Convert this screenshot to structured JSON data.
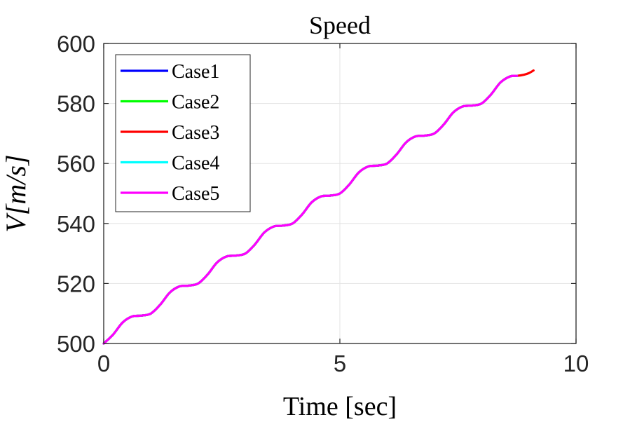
{
  "chart_data": {
    "type": "line",
    "title": "Speed",
    "xlabel": "Time [sec]",
    "ylabel": "V[m/s]",
    "xlim": [
      0,
      10
    ],
    "ylim": [
      500,
      600
    ],
    "xticks": [
      0,
      5,
      10
    ],
    "yticks": [
      500,
      520,
      540,
      560,
      580,
      600
    ],
    "xtick_labels": [
      "0",
      "5",
      "10"
    ],
    "ytick_labels": [
      "500",
      "520",
      "540",
      "560",
      "580",
      "600"
    ],
    "grid": true,
    "legend_position": "top-left",
    "series": [
      {
        "name": "Case1",
        "color": "#0000ff",
        "x": [
          0,
          0.2,
          0.4,
          0.6,
          0.8,
          1.0,
          1.2,
          1.4,
          1.6,
          1.8,
          2.0,
          2.2,
          2.4,
          2.6,
          2.8,
          3.0,
          3.2,
          3.4,
          3.6,
          3.8,
          4.0,
          4.2,
          4.4,
          4.6,
          4.8,
          5.0,
          5.2,
          5.4,
          5.6,
          5.8,
          6.0,
          6.2,
          6.4,
          6.6,
          6.8,
          7.0,
          7.2,
          7.4,
          7.6,
          7.8,
          8.0,
          8.2,
          8.4,
          8.6,
          8.75
        ],
        "y": [
          500,
          503,
          507,
          509,
          509.3,
          510,
          513,
          517,
          519,
          519.3,
          520,
          523,
          527,
          529,
          529.3,
          530,
          533,
          537,
          539,
          539.3,
          540,
          543,
          547,
          549,
          549.3,
          550,
          553,
          557,
          559,
          559.3,
          560,
          563,
          567,
          569,
          569.3,
          570,
          573,
          577,
          579,
          579.3,
          580,
          583,
          587,
          589,
          589.2
        ]
      },
      {
        "name": "Case2",
        "color": "#00ff00",
        "x": [
          0,
          0.2,
          0.4,
          0.6,
          0.8,
          1.0,
          1.2,
          1.4,
          1.6,
          1.8,
          2.0,
          2.2,
          2.4,
          2.6,
          2.8,
          3.0,
          3.2,
          3.4,
          3.6,
          3.8,
          4.0,
          4.2,
          4.4,
          4.6,
          4.8,
          5.0,
          5.2,
          5.4,
          5.6,
          5.8,
          6.0,
          6.2,
          6.4,
          6.6,
          6.8,
          7.0,
          7.2,
          7.4,
          7.6,
          7.8,
          8.0,
          8.2,
          8.4,
          8.6,
          8.75
        ],
        "y": [
          500,
          503,
          507,
          509,
          509.3,
          510,
          513,
          517,
          519,
          519.3,
          520,
          523,
          527,
          529,
          529.3,
          530,
          533,
          537,
          539,
          539.3,
          540,
          543,
          547,
          549,
          549.3,
          550,
          553,
          557,
          559,
          559.3,
          560,
          563,
          567,
          569,
          569.3,
          570,
          573,
          577,
          579,
          579.3,
          580,
          583,
          587,
          589,
          589.2
        ]
      },
      {
        "name": "Case3",
        "color": "#ff0000",
        "x": [
          0,
          0.2,
          0.4,
          0.6,
          0.8,
          1.0,
          1.2,
          1.4,
          1.6,
          1.8,
          2.0,
          2.2,
          2.4,
          2.6,
          2.8,
          3.0,
          3.2,
          3.4,
          3.6,
          3.8,
          4.0,
          4.2,
          4.4,
          4.6,
          4.8,
          5.0,
          5.2,
          5.4,
          5.6,
          5.8,
          6.0,
          6.2,
          6.4,
          6.6,
          6.8,
          7.0,
          7.2,
          7.4,
          7.6,
          7.8,
          8.0,
          8.2,
          8.4,
          8.6,
          8.75,
          8.9,
          9.0,
          9.1
        ],
        "y": [
          500,
          503,
          507,
          509,
          509.3,
          510,
          513,
          517,
          519,
          519.3,
          520,
          523,
          527,
          529,
          529.3,
          530,
          533,
          537,
          539,
          539.3,
          540,
          543,
          547,
          549,
          549.3,
          550,
          553,
          557,
          559,
          559.3,
          560,
          563,
          567,
          569,
          569.3,
          570,
          573,
          577,
          579,
          579.3,
          580,
          583,
          587,
          589,
          589.2,
          589.6,
          590.1,
          591
        ]
      },
      {
        "name": "Case4",
        "color": "#00ffff",
        "x": [
          0,
          0.2,
          0.4,
          0.6,
          0.8,
          1.0,
          1.2,
          1.4,
          1.6,
          1.8,
          2.0,
          2.2,
          2.4,
          2.6,
          2.8,
          3.0,
          3.2,
          3.4,
          3.6,
          3.8,
          4.0,
          4.2,
          4.4,
          4.6,
          4.8,
          5.0,
          5.2,
          5.4,
          5.6,
          5.8,
          6.0,
          6.2,
          6.4,
          6.6,
          6.8,
          7.0,
          7.2,
          7.4,
          7.6,
          7.8,
          8.0,
          8.2,
          8.4,
          8.6,
          8.75
        ],
        "y": [
          500,
          503,
          507,
          509,
          509.3,
          510,
          513,
          517,
          519,
          519.3,
          520,
          523,
          527,
          529,
          529.3,
          530,
          533,
          537,
          539,
          539.3,
          540,
          543,
          547,
          549,
          549.3,
          550,
          553,
          557,
          559,
          559.3,
          560,
          563,
          567,
          569,
          569.3,
          570,
          573,
          577,
          579,
          579.3,
          580,
          583,
          587,
          589,
          589.2
        ]
      },
      {
        "name": "Case5",
        "color": "#ff00ff",
        "x": [
          0,
          0.2,
          0.4,
          0.6,
          0.8,
          1.0,
          1.2,
          1.4,
          1.6,
          1.8,
          2.0,
          2.2,
          2.4,
          2.6,
          2.8,
          3.0,
          3.2,
          3.4,
          3.6,
          3.8,
          4.0,
          4.2,
          4.4,
          4.6,
          4.8,
          5.0,
          5.2,
          5.4,
          5.6,
          5.8,
          6.0,
          6.2,
          6.4,
          6.6,
          6.8,
          7.0,
          7.2,
          7.4,
          7.6,
          7.8,
          8.0,
          8.2,
          8.4,
          8.6,
          8.75
        ],
        "y": [
          500,
          503,
          507,
          509,
          509.3,
          510,
          513,
          517,
          519,
          519.3,
          520,
          523,
          527,
          529,
          529.3,
          530,
          533,
          537,
          539,
          539.3,
          540,
          543,
          547,
          549,
          549.3,
          550,
          553,
          557,
          559,
          559.3,
          560,
          563,
          567,
          569,
          569.3,
          570,
          573,
          577,
          579,
          579.3,
          580,
          583,
          587,
          589,
          589.2
        ]
      }
    ]
  }
}
